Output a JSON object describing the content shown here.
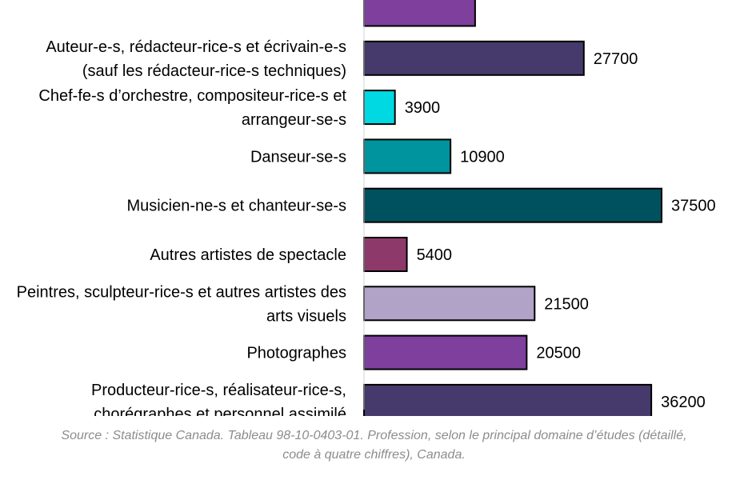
{
  "chart_data": {
    "type": "bar",
    "orientation": "horizontal",
    "categories": [
      "",
      "Auteur-e-s, rédacteur-rice-s et écrivain-e-s (sauf les rédacteur-rice-s techniques)",
      "Chef-fe-s d’orchestre, compositeur-rice-s et arrangeur-se-s",
      "Danseur-se-s",
      "Musicien-ne-s et chanteur-se-s",
      "Autres artistes de spectacle",
      "Peintres, sculpteur-rice-s et autres artistes des arts visuels",
      "Photographes",
      "Producteur-rice-s, réalisateur-rice-s, chorégraphes et personnel assimilé"
    ],
    "category_lines": [
      [],
      [
        "Auteur-e-s, rédacteur-rice-s et écrivain-e-s",
        "(sauf les rédacteur-rice-s techniques)"
      ],
      [
        "Chef-fe-s d’orchestre, compositeur-rice-s et",
        "arrangeur-se-s"
      ],
      [
        "Danseur-se-s"
      ],
      [
        "Musicien-ne-s et chanteur-se-s"
      ],
      [
        "Autres artistes de spectacle"
      ],
      [
        "Peintres, sculpteur-rice-s et autres artistes des",
        "arts visuels"
      ],
      [
        "Photographes"
      ],
      [
        "Producteur-rice-s, réalisateur-rice-s,",
        "chorégraphes et personnel assimilé"
      ]
    ],
    "values": [
      14000,
      27700,
      3900,
      10900,
      37500,
      5400,
      21500,
      20500,
      36200
    ],
    "value_labels": [
      "",
      "27700",
      "3900",
      "10900",
      "37500",
      "5400",
      "21500",
      "20500",
      "36200"
    ],
    "colors": [
      "#7e3f9d",
      "#453a6b",
      "#00d9e2",
      "#00949f",
      "#00515f",
      "#8d3a6a",
      "#b1a2c8",
      "#7e3f9d",
      "#453a6b"
    ],
    "xlim": [
      0,
      40000
    ],
    "grid": false,
    "legend": "none"
  },
  "source": {
    "line1": "Source : Statistique Canada. Tableau 98-10-0403-01. Profession, selon le principal domaine d’études (détaillé,",
    "line2": "code à quatre chiffres), Canada."
  }
}
